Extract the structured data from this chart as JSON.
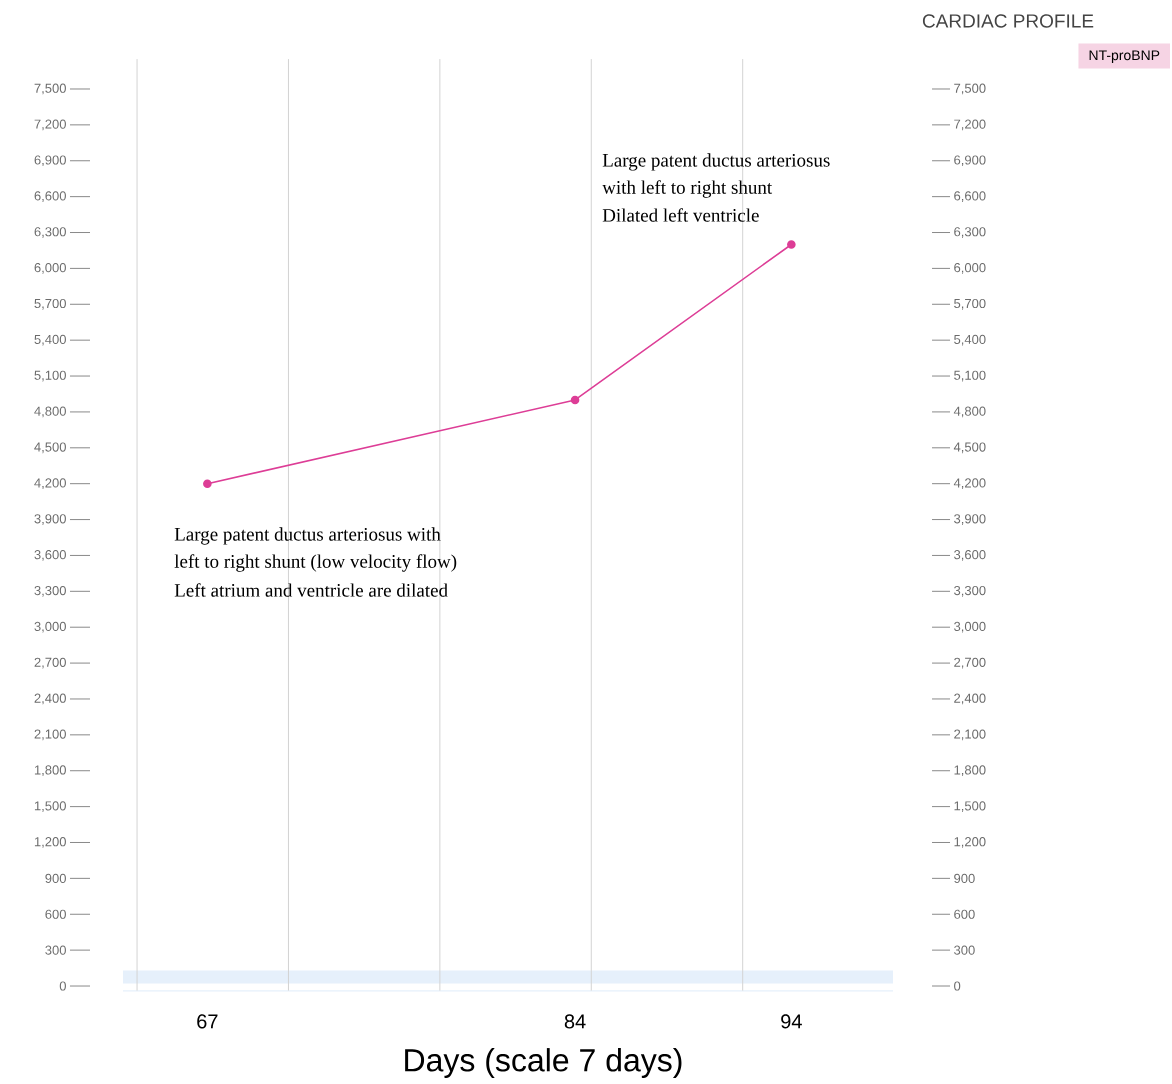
{
  "chart_data": {
    "type": "line",
    "title": "CARDIAC PROFILE",
    "xlabel": "Days (scale 7 days)",
    "x": [
      67,
      84,
      94
    ],
    "series": [
      {
        "name": "NT-proBNP",
        "color": "#dd3d96",
        "values": [
          4200,
          4900,
          6200
        ]
      }
    ],
    "xlim": [
      63.1,
      98.7
    ],
    "xticks": [
      67,
      84,
      94
    ],
    "ylim": [
      -40,
      7750
    ],
    "yticks": [
      {
        "value": 0,
        "label": "0"
      },
      {
        "value": 300,
        "label": "300"
      },
      {
        "value": 600,
        "label": "600"
      },
      {
        "value": 900,
        "label": "900"
      },
      {
        "value": 1200,
        "label": "1,200"
      },
      {
        "value": 1500,
        "label": "1,500"
      },
      {
        "value": 1800,
        "label": "1,800"
      },
      {
        "value": 2100,
        "label": "2,100"
      },
      {
        "value": 2400,
        "label": "2,400"
      },
      {
        "value": 2700,
        "label": "2,700"
      },
      {
        "value": 3000,
        "label": "3,000"
      },
      {
        "value": 3300,
        "label": "3,300"
      },
      {
        "value": 3600,
        "label": "3,600"
      },
      {
        "value": 3900,
        "label": "3,900"
      },
      {
        "value": 4200,
        "label": "4,200"
      },
      {
        "value": 4500,
        "label": "4,500"
      },
      {
        "value": 4800,
        "label": "4,800"
      },
      {
        "value": 5100,
        "label": "5,100"
      },
      {
        "value": 5400,
        "label": "5,400"
      },
      {
        "value": 5700,
        "label": "5,700"
      },
      {
        "value": 6000,
        "label": "6,000"
      },
      {
        "value": 6300,
        "label": "6,300"
      },
      {
        "value": 6600,
        "label": "6,600"
      },
      {
        "value": 6900,
        "label": "6,900"
      },
      {
        "value": 7200,
        "label": "7,200"
      },
      {
        "value": 7500,
        "label": "7,500"
      }
    ],
    "y2lim": [
      -40,
      7750
    ],
    "y2ticks": [
      {
        "value": 0,
        "label": "0"
      },
      {
        "value": 300,
        "label": "300"
      },
      {
        "value": 600,
        "label": "600"
      },
      {
        "value": 900,
        "label": "900"
      },
      {
        "value": 1200,
        "label": "1,200"
      },
      {
        "value": 1500,
        "label": "1,500"
      },
      {
        "value": 1800,
        "label": "1,800"
      },
      {
        "value": 2100,
        "label": "2,100"
      },
      {
        "value": 2400,
        "label": "2,400"
      },
      {
        "value": 2700,
        "label": "2,700"
      },
      {
        "value": 3000,
        "label": "3,000"
      },
      {
        "value": 3300,
        "label": "3,300"
      },
      {
        "value": 3600,
        "label": "3,600"
      },
      {
        "value": 3900,
        "label": "3,900"
      },
      {
        "value": 4200,
        "label": "4,200"
      },
      {
        "value": 4500,
        "label": "4,500"
      },
      {
        "value": 4800,
        "label": "4,800"
      },
      {
        "value": 5100,
        "label": "5,100"
      },
      {
        "value": 5400,
        "label": "5,400"
      },
      {
        "value": 5700,
        "label": "5,700"
      },
      {
        "value": 6000,
        "label": "6,000"
      },
      {
        "value": 6300,
        "label": "6,300"
      },
      {
        "value": 6600,
        "label": "6,600"
      },
      {
        "value": 6900,
        "label": "6,900"
      },
      {
        "value": 7200,
        "label": "7,200"
      },
      {
        "value": 7500,
        "label": "7,500"
      }
    ],
    "ref_lines": [
      {
        "axis": "x",
        "value": 63.75,
        "color": "#d3d3d3"
      },
      {
        "axis": "x",
        "value": 70.75,
        "color": "#d3d3d3"
      },
      {
        "axis": "x",
        "value": 77.75,
        "color": "#d3d3d3"
      },
      {
        "axis": "x",
        "value": 84.75,
        "color": "#d3d3d3"
      },
      {
        "axis": "x",
        "value": 91.75,
        "color": "#d3d3d3"
      }
    ],
    "bands": [
      {
        "axis": "y",
        "from": 20,
        "to": 130,
        "color": "#e6f0fb"
      }
    ],
    "annotations": [
      "Large patent ductus arteriosus with",
      "left to right shunt (low velocity flow)",
      "Left atrium and ventricle are dilated",
      "Large patent ductus arteriosus",
      "with left to right shunt",
      "Dilated left ventricle"
    ],
    "legend": "top right",
    "marker": "circle",
    "line_style": "solid"
  }
}
